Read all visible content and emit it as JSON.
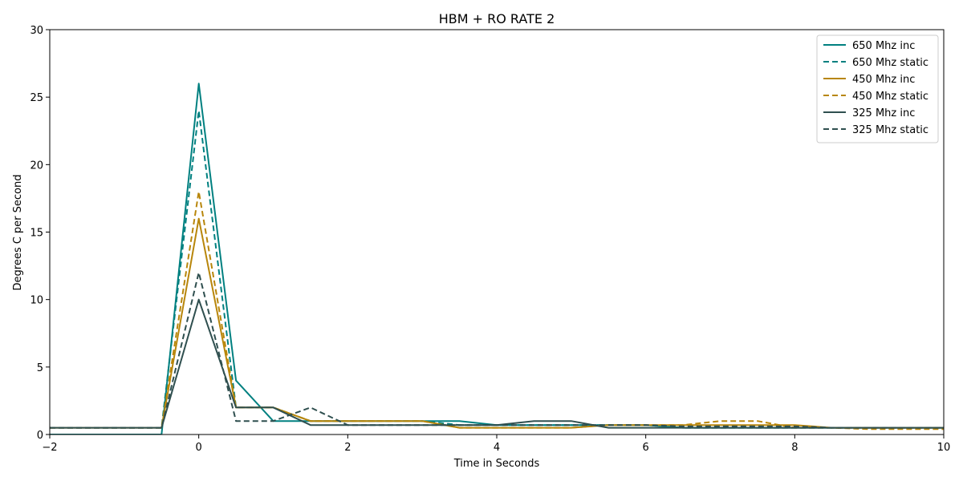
{
  "chart_data": {
    "type": "line",
    "title": "HBM + RO RATE 2",
    "xlabel": "Time in Seconds",
    "ylabel": "Degrees C per Second",
    "xlim": [
      -2,
      10
    ],
    "ylim": [
      0,
      30
    ],
    "xticks": [
      -2,
      0,
      2,
      4,
      6,
      8,
      10
    ],
    "yticks": [
      0,
      5,
      10,
      15,
      20,
      25,
      30
    ],
    "grid": false,
    "legend_position": "top-right",
    "series": [
      {
        "name": "650 Mhz inc",
        "color": "#008080",
        "style": "solid",
        "x": [
          -2,
          -1.5,
          -1,
          -0.5,
          0,
          0.5,
          1,
          1.5,
          2,
          2.5,
          3,
          3.5,
          4,
          4.5,
          5,
          5.5,
          6,
          6.5,
          7,
          7.5,
          8,
          8.5,
          9,
          9.5,
          10
        ],
        "y": [
          0,
          0,
          0,
          0,
          26,
          4,
          1,
          1,
          1,
          1,
          1,
          1,
          0.7,
          0.7,
          0.7,
          0.7,
          0.7,
          0.5,
          0.5,
          0.5,
          0.5,
          0.5,
          0.5,
          0.5,
          0.5
        ]
      },
      {
        "name": "650 Mhz static",
        "color": "#008080",
        "style": "dashed",
        "x": [
          -2,
          -1.5,
          -1,
          -0.5,
          0,
          0.5,
          1,
          1.5,
          2,
          2.5,
          3,
          3.5,
          4,
          4.5,
          5,
          5.5,
          6,
          6.5,
          7,
          7.5,
          8,
          8.5,
          9,
          9.5,
          10
        ],
        "y": [
          0.5,
          0.5,
          0.5,
          0.5,
          24,
          2,
          2,
          1,
          1,
          1,
          1,
          0.7,
          0.7,
          0.7,
          0.7,
          0.7,
          0.7,
          0.5,
          0.5,
          0.5,
          0.5,
          0.5,
          0.5,
          0.5,
          0.5
        ]
      },
      {
        "name": "450 Mhz inc",
        "color": "#b8860b",
        "style": "solid",
        "x": [
          -2,
          -1.5,
          -1,
          -0.5,
          0,
          0.5,
          1,
          1.5,
          2,
          2.5,
          3,
          3.5,
          4,
          4.5,
          5,
          5.5,
          6,
          6.5,
          7,
          7.5,
          8,
          8.5,
          9,
          9.5,
          10
        ],
        "y": [
          0.5,
          0.5,
          0.5,
          0.5,
          16,
          2,
          2,
          1,
          1,
          1,
          1,
          0.5,
          0.5,
          0.5,
          0.5,
          0.7,
          0.7,
          0.7,
          0.7,
          0.7,
          0.7,
          0.5,
          0.5,
          0.5,
          0.5
        ]
      },
      {
        "name": "450 Mhz static",
        "color": "#b8860b",
        "style": "dashed",
        "x": [
          -2,
          -1.5,
          -1,
          -0.5,
          0,
          0.5,
          1,
          1.5,
          2,
          2.5,
          3,
          3.5,
          4,
          4.5,
          5,
          5.5,
          6,
          6.5,
          7,
          7.5,
          8,
          8.5,
          9,
          9.5,
          10
        ],
        "y": [
          0.5,
          0.5,
          0.5,
          0.5,
          18,
          2,
          2,
          1,
          1,
          1,
          1,
          0.5,
          0.5,
          0.5,
          0.5,
          0.7,
          0.7,
          0.7,
          1,
          1,
          0.5,
          0.5,
          0.4,
          0.4,
          0.4
        ]
      },
      {
        "name": "325 Mhz inc",
        "color": "#2f4f4f",
        "style": "solid",
        "x": [
          -2,
          -1.5,
          -1,
          -0.5,
          0,
          0.5,
          1,
          1.5,
          2,
          2.5,
          3,
          3.5,
          4,
          4.5,
          5,
          5.5,
          6,
          6.5,
          7,
          7.5,
          8,
          8.5,
          9,
          9.5,
          10
        ],
        "y": [
          0.5,
          0.5,
          0.5,
          0.5,
          10,
          2,
          2,
          0.7,
          0.7,
          0.7,
          0.7,
          0.7,
          0.7,
          1,
          1,
          0.5,
          0.5,
          0.5,
          0.5,
          0.5,
          0.5,
          0.5,
          0.5,
          0.5,
          0.5
        ]
      },
      {
        "name": "325 Mhz static",
        "color": "#2f4f4f",
        "style": "dashed",
        "x": [
          -2,
          -1.5,
          -1,
          -0.5,
          0,
          0.5,
          1,
          1.5,
          2,
          2.5,
          3,
          3.5,
          4,
          4.5,
          5,
          5.5,
          6,
          6.5,
          7,
          7.5,
          8,
          8.5,
          9,
          9.5,
          10
        ],
        "y": [
          0.5,
          0.5,
          0.5,
          0.5,
          12,
          1,
          1,
          2,
          0.7,
          0.7,
          0.7,
          0.7,
          0.7,
          0.7,
          0.7,
          0.7,
          0.7,
          0.6,
          0.6,
          0.6,
          0.6,
          0.5,
          0.5,
          0.5,
          0.5
        ]
      }
    ]
  }
}
